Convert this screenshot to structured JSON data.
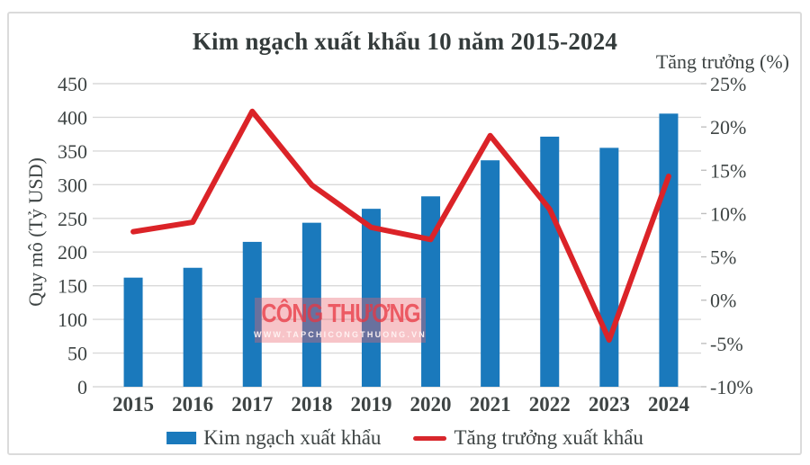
{
  "watermark": {
    "line1": "CÔNG THƯƠNG",
    "line2": "WWW.TAPCHICONGTHUONG.VN"
  },
  "chart_data": {
    "type": "combo bar+line",
    "title": "Kim ngạch xuất khẩu 10 năm 2015-2024",
    "categories": [
      "2015",
      "2016",
      "2017",
      "2018",
      "2019",
      "2020",
      "2021",
      "2022",
      "2023",
      "2024"
    ],
    "series": [
      {
        "name": "Kim ngạch xuất khẩu",
        "type": "bar",
        "axis": "left",
        "color": "#1A79BC",
        "values": [
          162.0,
          176.6,
          215.1,
          243.5,
          264.2,
          282.7,
          336.2,
          371.3,
          354.7,
          405.5
        ]
      },
      {
        "name": "Tăng trưởng xuất khẩu",
        "type": "line",
        "axis": "right",
        "color": "#DB2328",
        "values": [
          7.9,
          9.0,
          21.8,
          13.3,
          8.4,
          7.0,
          19.0,
          10.5,
          -4.6,
          14.3
        ]
      }
    ],
    "left_axis": {
      "title": "Quy mô (Tỷ USD)",
      "min": 0,
      "max": 450,
      "step": 50,
      "tick_labels": [
        "450",
        "400",
        "350",
        "300",
        "250",
        "200",
        "150",
        "100",
        "50",
        "0"
      ]
    },
    "right_axis": {
      "title": "Tăng trưởng (%)",
      "min": -10,
      "max": 25,
      "step": 5,
      "tick_labels": [
        "25%",
        "20%",
        "15%",
        "10%",
        "5%",
        "0%",
        "-5%",
        "-10%"
      ]
    },
    "grid": true,
    "legend_position": "bottom"
  }
}
